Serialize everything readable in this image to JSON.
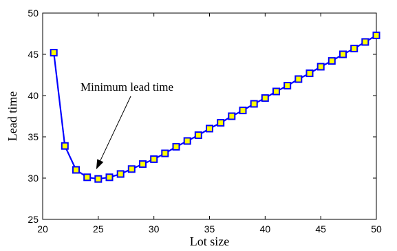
{
  "chart_data": {
    "type": "line",
    "title": "",
    "xlabel": "Lot size",
    "ylabel": "Lead time",
    "xlim": [
      20,
      50
    ],
    "ylim": [
      25,
      50
    ],
    "xticks": [
      20,
      25,
      30,
      35,
      40,
      45,
      50
    ],
    "yticks": [
      25,
      30,
      35,
      40,
      45,
      50
    ],
    "grid": false,
    "series": [
      {
        "x": [
          21,
          22,
          23,
          24,
          25,
          26,
          27,
          28,
          29,
          30,
          31,
          32,
          33,
          34,
          35,
          36,
          37,
          38,
          39,
          40,
          41,
          42,
          43,
          44,
          45,
          46,
          47,
          48,
          49,
          50
        ],
        "y": [
          45.2,
          33.9,
          31.0,
          30.1,
          29.9,
          30.1,
          30.5,
          31.1,
          31.7,
          32.3,
          33.0,
          33.8,
          34.5,
          35.2,
          36.0,
          36.7,
          37.5,
          38.2,
          39.0,
          39.7,
          40.5,
          41.2,
          42.0,
          42.7,
          43.5,
          44.2,
          45.0,
          45.7,
          46.5,
          47.3
        ],
        "line_color": "#0000ff",
        "marker": "square",
        "marker_face": "#ffff00",
        "marker_edge": "#0000ff"
      }
    ],
    "annotations": [
      {
        "text": "Minimum lead time",
        "target_x": 25,
        "target_y": 29.9
      }
    ]
  }
}
